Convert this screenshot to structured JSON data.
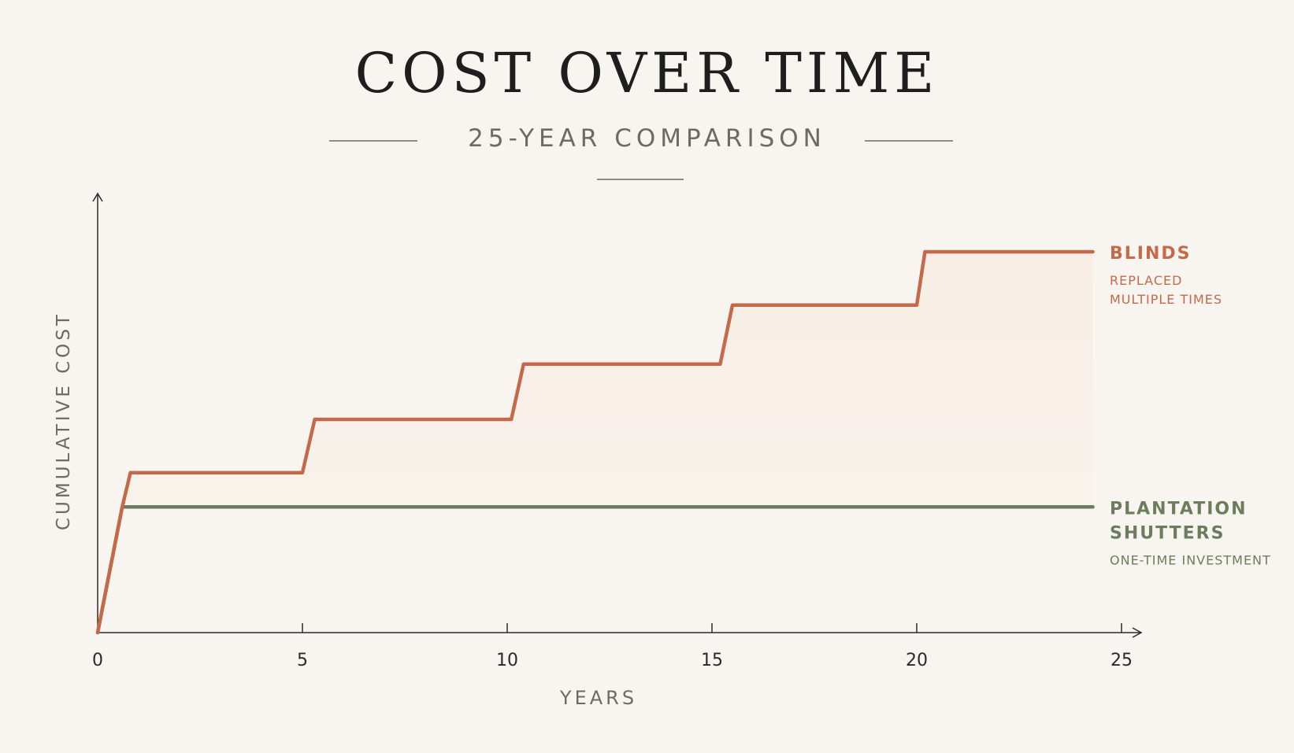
{
  "chart_data": {
    "type": "line",
    "title": "COST OVER TIME",
    "subtitle": "25-YEAR COMPARISON",
    "xlabel": "YEARS",
    "ylabel": "CUMULATIVE COST",
    "xlim": [
      0,
      25
    ],
    "ylim": [
      0,
      100
    ],
    "x_ticks": [
      0,
      5,
      10,
      15,
      20,
      25
    ],
    "grid": false,
    "legend": "right, at line ends",
    "series": [
      {
        "name": "BLINDS",
        "note": [
          "REPLACED",
          "MULTIPLE TIMES"
        ],
        "color": "#c4694a",
        "points": [
          [
            0,
            0
          ],
          [
            0.6,
            33
          ],
          [
            0.8,
            42
          ],
          [
            5,
            42
          ],
          [
            5.3,
            56
          ],
          [
            10.1,
            56
          ],
          [
            10.4,
            70.5
          ],
          [
            15.2,
            70.5
          ],
          [
            15.5,
            86
          ],
          [
            20,
            86
          ],
          [
            20.2,
            100
          ],
          [
            24.3,
            100
          ]
        ]
      },
      {
        "name": "PLANTATION SHUTTERS",
        "name_lines": [
          "PLANTATION",
          "SHUTTERS"
        ],
        "note": [
          "ONE-TIME INVESTMENT"
        ],
        "color": "#6b7d5c",
        "points": [
          [
            0,
            0
          ],
          [
            0.6,
            33
          ],
          [
            24.3,
            33
          ]
        ]
      }
    ]
  }
}
